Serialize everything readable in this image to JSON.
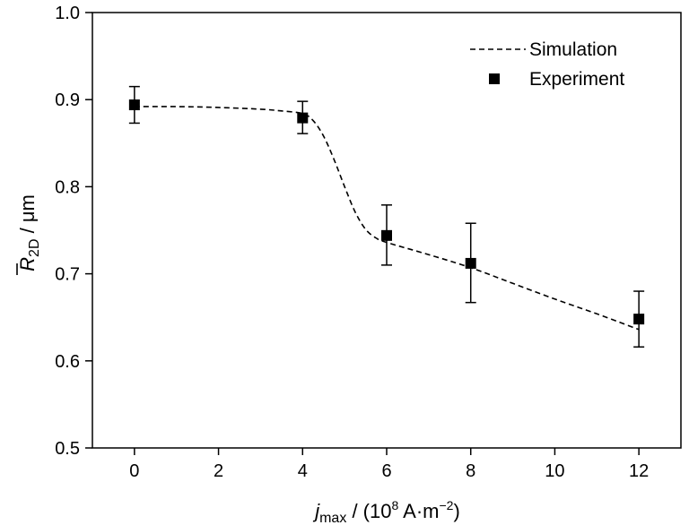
{
  "chart_data": {
    "type": "scatter",
    "xlabel": {
      "main": "j",
      "sub": "max",
      "mid": " / (10",
      "sup1": "8",
      "unit": " A·m",
      "sup2": "−2",
      "close": ")"
    },
    "ylabel": {
      "main": "R",
      "sub": "2D",
      "unit": " / μm"
    },
    "xlim": [
      -1,
      13
    ],
    "ylim": [
      0.5,
      1.0
    ],
    "xticks": [
      0,
      2,
      4,
      6,
      8,
      10,
      12
    ],
    "xtick_labels": [
      "0",
      "2",
      "4",
      "6",
      "8",
      "10",
      "12"
    ],
    "yticks": [
      0.5,
      0.6,
      0.7,
      0.8,
      0.9,
      1.0
    ],
    "ytick_labels": [
      "0.5",
      "0.6",
      "0.7",
      "0.8",
      "0.9",
      "1.0"
    ],
    "grid": false,
    "legend_position": "top-right",
    "series": [
      {
        "name": "Simulation",
        "style": "dashed-line",
        "color": "#000000",
        "x": [
          0,
          1,
          2,
          3,
          3.5,
          4,
          4.25,
          4.5,
          4.75,
          5,
          5.25,
          5.5,
          5.75,
          6,
          7,
          8,
          9,
          10,
          11,
          12
        ],
        "y": [
          0.892,
          0.892,
          0.891,
          0.889,
          0.887,
          0.884,
          0.876,
          0.858,
          0.831,
          0.8,
          0.771,
          0.751,
          0.741,
          0.736,
          0.722,
          0.707,
          0.689,
          0.671,
          0.654,
          0.636
        ]
      },
      {
        "name": "Experiment",
        "style": "square-marker-errorbar",
        "color": "#000000",
        "x": [
          0,
          4,
          6,
          8,
          12
        ],
        "y": [
          0.894,
          0.879,
          0.744,
          0.712,
          0.648
        ],
        "yerr_low": [
          0.873,
          0.861,
          0.71,
          0.667,
          0.616
        ],
        "yerr_high": [
          0.915,
          0.898,
          0.779,
          0.758,
          0.68
        ]
      }
    ]
  }
}
